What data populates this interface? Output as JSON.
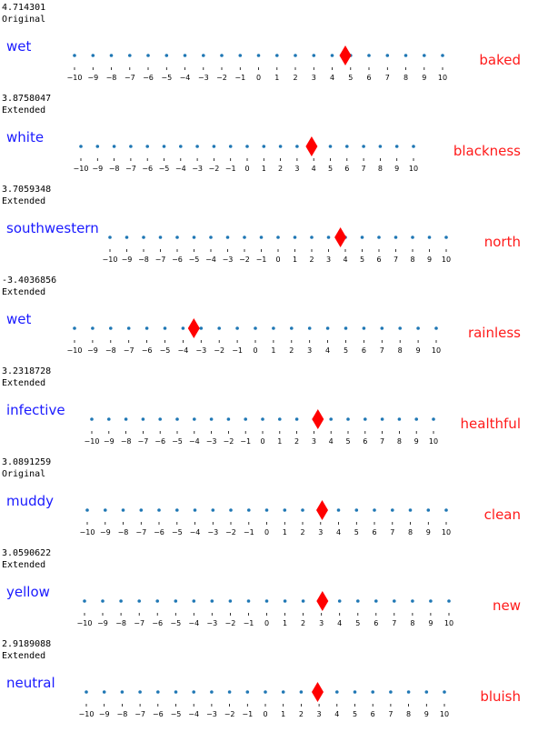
{
  "chart_data": [
    {
      "type": "scatter",
      "score": "4.714301",
      "status": "Original",
      "left_word": "wet",
      "right_word": "baked",
      "value": 4.714301,
      "xlim": [
        -10,
        10
      ],
      "ticks": [
        -10,
        -9,
        -8,
        -7,
        -6,
        -5,
        -4,
        -3,
        -2,
        -1,
        0,
        1,
        2,
        3,
        4,
        5,
        6,
        7,
        8,
        9,
        10
      ]
    },
    {
      "type": "scatter",
      "score": "3.8758047",
      "status": "Extended",
      "left_word": "white",
      "right_word": "blackness",
      "value": 3.8758047,
      "xlim": [
        -10,
        10
      ],
      "ticks": [
        -10,
        -9,
        -8,
        -7,
        -6,
        -5,
        -4,
        -3,
        -2,
        -1,
        0,
        1,
        2,
        3,
        4,
        5,
        6,
        7,
        8,
        9,
        10
      ]
    },
    {
      "type": "scatter",
      "score": "3.7059348",
      "status": "Extended",
      "left_word": "southwestern",
      "right_word": "north",
      "value": 3.7059348,
      "xlim": [
        -10,
        10
      ],
      "ticks": [
        -10,
        -9,
        -8,
        -7,
        -6,
        -5,
        -4,
        -3,
        -2,
        -1,
        0,
        1,
        2,
        3,
        4,
        5,
        6,
        7,
        8,
        9,
        10
      ]
    },
    {
      "type": "scatter",
      "score": "-3.4036856",
      "status": "Extended",
      "left_word": "wet",
      "right_word": "rainless",
      "value": -3.4036856,
      "xlim": [
        -10,
        10
      ],
      "ticks": [
        -10,
        -9,
        -8,
        -7,
        -6,
        -5,
        -4,
        -3,
        -2,
        -1,
        0,
        1,
        2,
        3,
        4,
        5,
        6,
        7,
        8,
        9,
        10
      ]
    },
    {
      "type": "scatter",
      "score": "3.2318728",
      "status": "Extended",
      "left_word": "infective",
      "right_word": "healthful",
      "value": 3.2318728,
      "xlim": [
        -10,
        10
      ],
      "ticks": [
        -10,
        -9,
        -8,
        -7,
        -6,
        -5,
        -4,
        -3,
        -2,
        -1,
        0,
        1,
        2,
        3,
        4,
        5,
        6,
        7,
        8,
        9,
        10
      ]
    },
    {
      "type": "scatter",
      "score": "3.0891259",
      "status": "Original",
      "left_word": "muddy",
      "right_word": "clean",
      "value": 3.0891259,
      "xlim": [
        -10,
        10
      ],
      "ticks": [
        -10,
        -9,
        -8,
        -7,
        -6,
        -5,
        -4,
        -3,
        -2,
        -1,
        0,
        1,
        2,
        3,
        4,
        5,
        6,
        7,
        8,
        9,
        10
      ]
    },
    {
      "type": "scatter",
      "score": "3.0590622",
      "status": "Extended",
      "left_word": "yellow",
      "right_word": "new",
      "value": 3.0590622,
      "xlim": [
        -10,
        10
      ],
      "ticks": [
        -10,
        -9,
        -8,
        -7,
        -6,
        -5,
        -4,
        -3,
        -2,
        -1,
        0,
        1,
        2,
        3,
        4,
        5,
        6,
        7,
        8,
        9,
        10
      ]
    },
    {
      "type": "scatter",
      "score": "2.9189088",
      "status": "Extended",
      "left_word": "neutral",
      "right_word": "bluish",
      "value": 2.9189088,
      "xlim": [
        -10,
        10
      ],
      "ticks": [
        -10,
        -9,
        -8,
        -7,
        -6,
        -5,
        -4,
        -3,
        -2,
        -1,
        0,
        1,
        2,
        3,
        4,
        5,
        6,
        7,
        8,
        9,
        10
      ]
    }
  ],
  "colors": {
    "dots": "#1f77b4",
    "marker": "#ff0000",
    "left_word": "#1a1aff",
    "right_word": "#ff1a1a"
  }
}
